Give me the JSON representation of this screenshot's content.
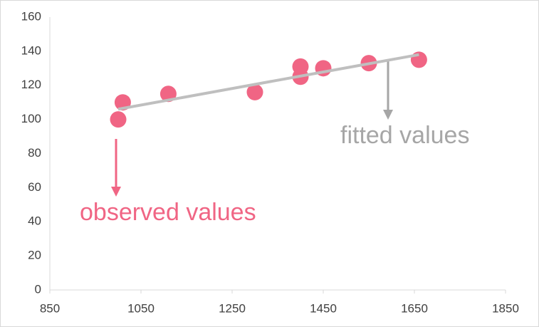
{
  "chart_data": {
    "type": "scatter",
    "series": [
      {
        "name": "observed values",
        "color": "#f06584",
        "mode": "markers",
        "x": [
          1000,
          1010,
          1110,
          1300,
          1400,
          1400,
          1450,
          1550,
          1660
        ],
        "values": [
          100,
          110,
          115,
          116,
          131,
          125,
          130,
          133,
          135
        ]
      },
      {
        "name": "fitted values",
        "color": "#bfbfbf",
        "mode": "line",
        "x": [
          1000,
          1660
        ],
        "values": [
          106,
          138
        ]
      }
    ],
    "xlim": [
      850,
      1850
    ],
    "xticks": [
      850,
      1050,
      1250,
      1450,
      1650,
      1850
    ],
    "ylim": [
      0,
      160
    ],
    "yticks": [
      0,
      20,
      40,
      60,
      80,
      100,
      120,
      140,
      160
    ],
    "grid": false
  }
}
